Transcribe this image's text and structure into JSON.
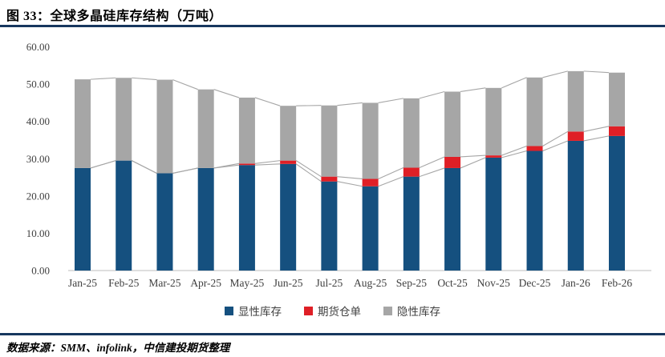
{
  "header": {
    "title": "图 33：全球多晶硅库存结构（万吨）",
    "accent_color": "#17375e"
  },
  "chart_data": {
    "type": "bar",
    "stacked": true,
    "title": "全球多晶硅库存结构（万吨）",
    "unit": "万吨",
    "categories": [
      "Jan-25",
      "Feb-25",
      "Mar-25",
      "Apr-25",
      "May-25",
      "Jun-25",
      "Jul-25",
      "Aug-25",
      "Sep-25",
      "Oct-25",
      "Nov-25",
      "Dec-25",
      "Jan-26",
      "Feb-26"
    ],
    "series": [
      {
        "name": "显性库存",
        "color": "#15507f",
        "values": [
          27.5,
          29.5,
          26.1,
          27.5,
          28.3,
          28.6,
          23.9,
          22.6,
          25.2,
          27.5,
          30.3,
          32.1,
          34.8,
          36.1
        ]
      },
      {
        "name": "期货仓单",
        "color": "#df1f26",
        "values": [
          0,
          0,
          0,
          0,
          0.4,
          0.9,
          1.3,
          2.0,
          2.4,
          3.0,
          0.6,
          1.3,
          2.5,
          2.6
        ]
      },
      {
        "name": "隐性库存",
        "color": "#a6a6a6",
        "values": [
          23.8,
          22.2,
          25.1,
          21.1,
          17.7,
          14.7,
          19.1,
          20.4,
          18.6,
          17.5,
          18.1,
          18.4,
          16.2,
          14.4
        ]
      }
    ],
    "totals": [
      51.3,
      51.7,
      51.2,
      48.6,
      46.4,
      44.2,
      44.3,
      45.0,
      46.2,
      48.0,
      49.0,
      51.8,
      53.5,
      53.1
    ],
    "ylim": [
      0,
      60
    ],
    "ytick_step": 10,
    "ytick_labels": [
      "0.00",
      "10.00",
      "20.00",
      "30.00",
      "40.00",
      "50.00",
      "60.00"
    ],
    "grid": false,
    "connector_lines": true,
    "connector_color": "#a6a6a6",
    "axis_line_color": "#c9c9c9",
    "tick_label_color": "#404040",
    "legend_position": "bottom"
  },
  "footer": {
    "source_text": "数据来源：SMM、infolink，中信建投期货整理"
  }
}
